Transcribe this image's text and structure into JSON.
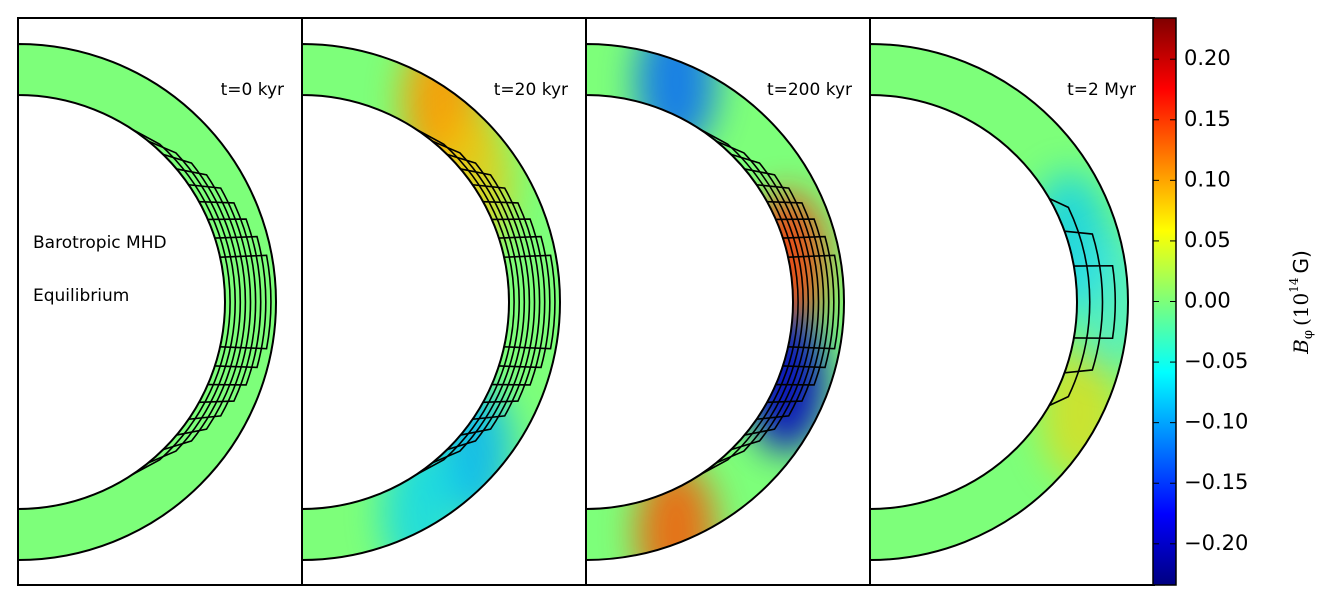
{
  "panels": [
    {
      "label": "t=0 kyr"
    },
    {
      "label": "t=20 kyr"
    },
    {
      "label": "t=200 kyr"
    },
    {
      "label": "t=2 Myr"
    }
  ],
  "annotations": [
    "Barotropic MHD",
    "Equilibrium"
  ],
  "colorbar": {
    "label": {
      "symbol": "B",
      "subscript": "φ",
      "prefix": "(10",
      "exponent": "14",
      "unit": "G)"
    },
    "lim": [
      -0.234,
      0.234
    ],
    "ticks": [
      {
        "value": 0.2,
        "label": "0.20"
      },
      {
        "value": 0.15,
        "label": "0.15"
      },
      {
        "value": 0.1,
        "label": "0.10"
      },
      {
        "value": 0.05,
        "label": "0.05"
      },
      {
        "value": 0,
        "label": "0.00"
      },
      {
        "value": -0.05,
        "label": "−0.05"
      },
      {
        "value": -0.1,
        "label": "−0.10"
      },
      {
        "value": -0.15,
        "label": "−0.15"
      },
      {
        "value": -0.2,
        "label": "−0.20"
      }
    ]
  }
}
